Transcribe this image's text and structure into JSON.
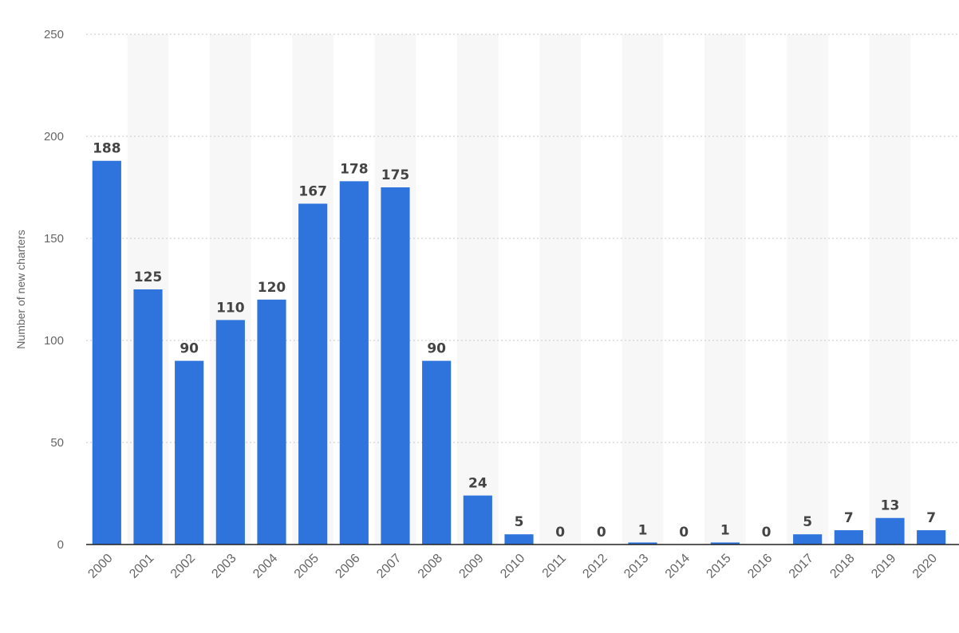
{
  "chart_data": {
    "type": "bar",
    "title": "",
    "xlabel": "",
    "ylabel": "Number of new charters",
    "ylim": [
      0,
      250
    ],
    "yticks": [
      0,
      50,
      100,
      150,
      200,
      250
    ],
    "grid": true,
    "colors": {
      "bar": "#2f74dc",
      "band": "#f7f7f7",
      "grid": "#c8c8c8"
    },
    "categories": [
      "2000",
      "2001",
      "2002",
      "2003",
      "2004",
      "2005",
      "2006",
      "2007",
      "2008",
      "2009",
      "2010",
      "2011",
      "2012",
      "2013",
      "2014",
      "2015",
      "2016",
      "2017",
      "2018",
      "2019",
      "2020"
    ],
    "values": [
      188,
      125,
      90,
      110,
      120,
      167,
      178,
      175,
      90,
      24,
      5,
      0,
      0,
      1,
      0,
      1,
      0,
      5,
      7,
      13,
      7
    ]
  }
}
